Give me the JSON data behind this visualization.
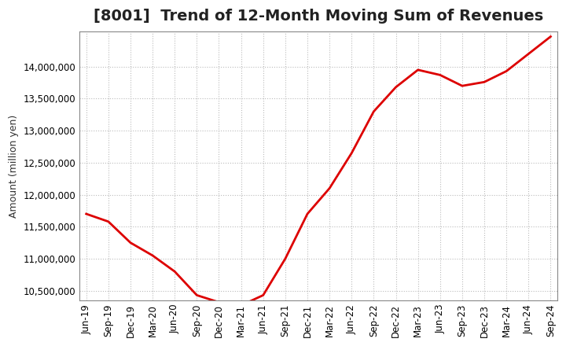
{
  "title": "[8001]  Trend of 12-Month Moving Sum of Revenues",
  "ylabel": "Amount (million yen)",
  "line_color": "#dd0000",
  "line_width": 2.0,
  "background_color": "#ffffff",
  "grid_color": "#bbbbbb",
  "ylim": [
    10350000,
    14550000
  ],
  "yticks": [
    10500000,
    11000000,
    11500000,
    12000000,
    12500000,
    13000000,
    13500000,
    14000000
  ],
  "x_labels": [
    "Jun-19",
    "Sep-19",
    "Dec-19",
    "Mar-20",
    "Jun-20",
    "Sep-20",
    "Dec-20",
    "Mar-21",
    "Jun-21",
    "Sep-21",
    "Dec-21",
    "Mar-22",
    "Jun-22",
    "Sep-22",
    "Dec-22",
    "Mar-23",
    "Jun-23",
    "Sep-23",
    "Dec-23",
    "Mar-24",
    "Jun-24",
    "Sep-24"
  ],
  "values": [
    11700000,
    11580000,
    11250000,
    11050000,
    10800000,
    10430000,
    10320000,
    10270000,
    10430000,
    11000000,
    11700000,
    12100000,
    12650000,
    13300000,
    13680000,
    13950000,
    13870000,
    13700000,
    13760000,
    13930000,
    14200000,
    14470000
  ],
  "title_fontsize": 14,
  "ylabel_fontsize": 9,
  "tick_fontsize": 8.5
}
